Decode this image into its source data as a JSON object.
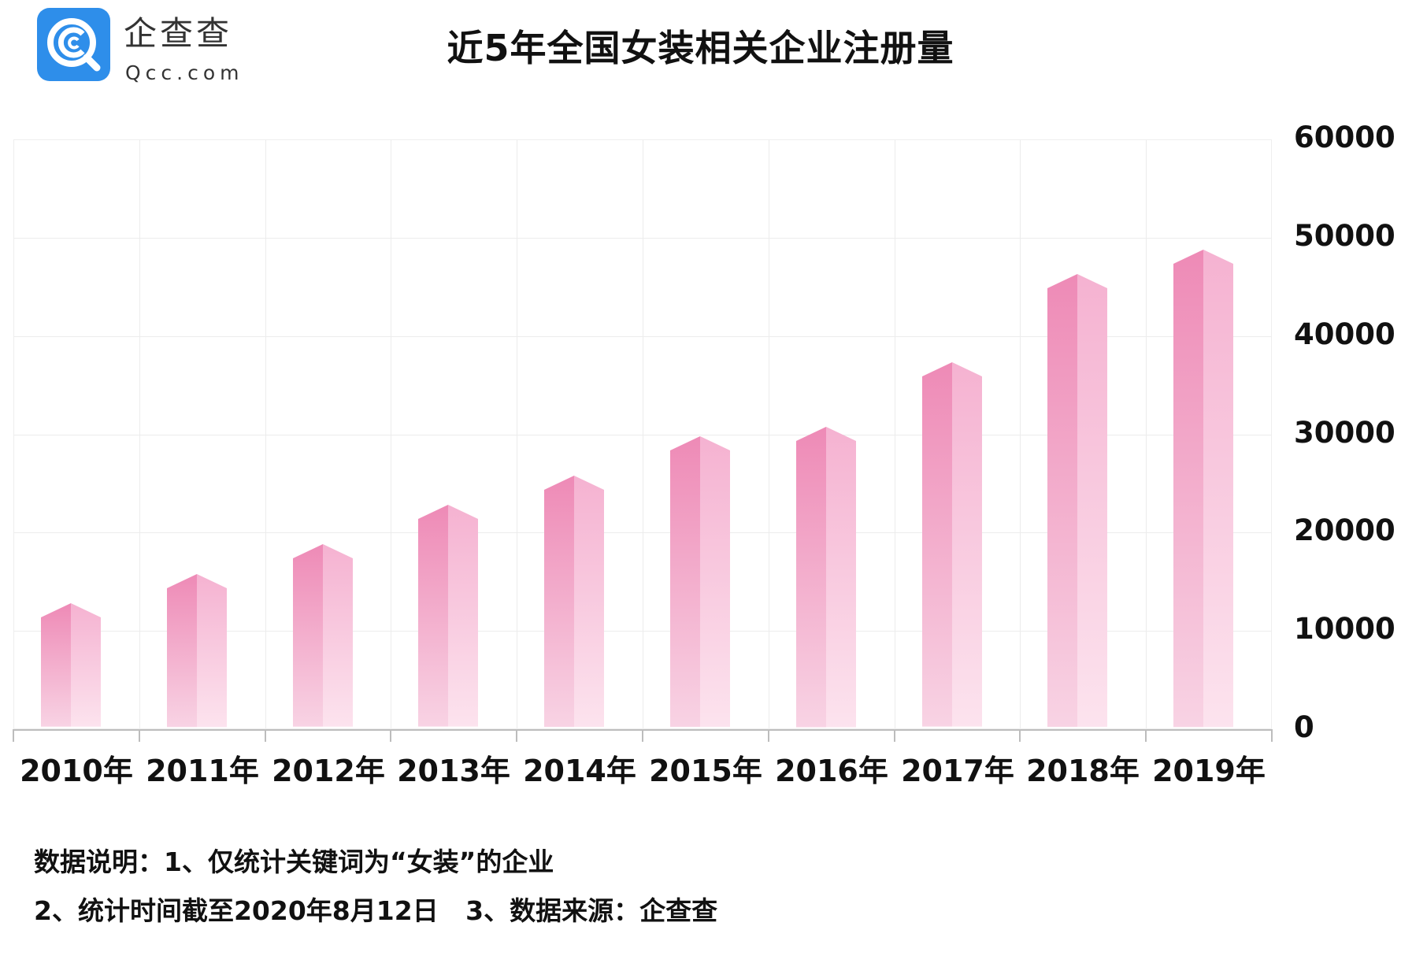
{
  "header": {
    "logo": {
      "icon": "qcc-magnifier-icon",
      "name_cn": "企查查",
      "name_en": "Qcc.com",
      "brand_color": "#2E8EEA"
    },
    "title": "近5年全国女装相关企业注册量"
  },
  "footer": {
    "note_line1": "数据说明：1、仅统计关键词为“女装”的企业",
    "note_line2": "2、统计时间截至2020年8月12日   3、数据来源：企查查"
  },
  "colors": {
    "bar_left_top": "#EE8AB6",
    "bar_left_bottom": "#F8D3E4",
    "bar_right_top": "#F5B2D1",
    "bar_right_bottom": "#FCE3EE",
    "grid": "#ECECEC",
    "axis": "#BDBDBD"
  },
  "chart_data": {
    "type": "bar",
    "title": "近5年全国女装相关企业注册量",
    "xlabel": "",
    "ylabel": "",
    "categories": [
      "2010年",
      "2011年",
      "2012年",
      "2013年",
      "2014年",
      "2015年",
      "2016年",
      "2017年",
      "2018年",
      "2019年"
    ],
    "values": [
      12000,
      15000,
      18000,
      22000,
      25000,
      29000,
      30000,
      36500,
      45500,
      48000
    ],
    "ylim": [
      0,
      60000
    ],
    "yticks": [
      "0",
      "10000",
      "20000",
      "30000",
      "40000",
      "50000",
      "60000"
    ],
    "yaxis_position": "right",
    "grid": true,
    "legend": null,
    "style": "3d-prism pink gradient bars"
  }
}
